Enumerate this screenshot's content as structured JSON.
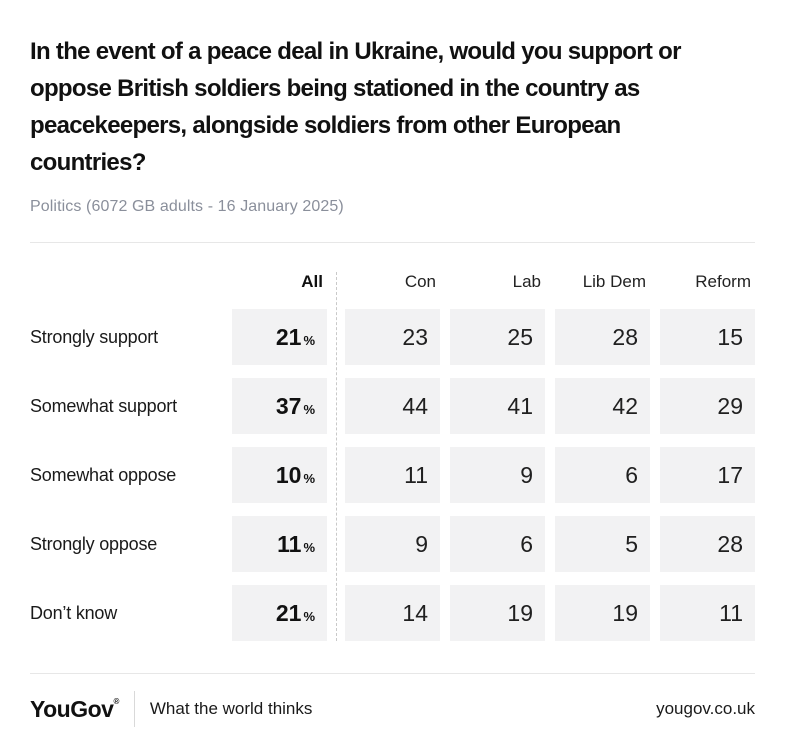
{
  "header": {
    "title_lines": [
      "In the event of a peace deal in Ukraine, would you support or",
      "oppose British soldiers being stationed in the country as",
      "peacekeepers, alongside soldiers from other European",
      "countries?"
    ],
    "title_full": "In the event of a peace deal in Ukraine, would you support or oppose British soldiers being stationed in the country as peacekeepers, alongside soldiers from other European countries?",
    "subtitle": "Politics (6072 GB adults - 16 January 2025)"
  },
  "table": {
    "columns": [
      "All",
      "Con",
      "Lab",
      "Lib Dem",
      "Reform"
    ],
    "percent_sign": "%",
    "rows": [
      {
        "label": "Strongly support",
        "all": "21",
        "values": [
          "23",
          "25",
          "28",
          "15"
        ]
      },
      {
        "label": "Somewhat support",
        "all": "37",
        "values": [
          "44",
          "41",
          "42",
          "29"
        ]
      },
      {
        "label": "Somewhat oppose",
        "all": "10",
        "values": [
          "11",
          "9",
          "6",
          "17"
        ]
      },
      {
        "label": "Strongly oppose",
        "all": "11",
        "values": [
          "9",
          "6",
          "5",
          "28"
        ]
      },
      {
        "label": "Don’t know",
        "all": "21",
        "values": [
          "14",
          "19",
          "19",
          "11"
        ]
      }
    ]
  },
  "chart_data": {
    "type": "table",
    "title": "In the event of a peace deal in Ukraine, would you support or oppose British soldiers being stationed in the country as peacekeepers, alongside soldiers from other European countries?",
    "subtitle": "Politics (6072 GB adults - 16 January 2025)",
    "units": "percent",
    "columns": [
      "All",
      "Con",
      "Lab",
      "Lib Dem",
      "Reform"
    ],
    "row_labels": [
      "Strongly support",
      "Somewhat support",
      "Somewhat oppose",
      "Strongly oppose",
      "Don’t know"
    ],
    "values": [
      [
        21,
        23,
        25,
        28,
        15
      ],
      [
        37,
        44,
        41,
        42,
        29
      ],
      [
        10,
        11,
        9,
        6,
        17
      ],
      [
        11,
        9,
        6,
        5,
        28
      ],
      [
        21,
        14,
        19,
        19,
        11
      ]
    ]
  },
  "footer": {
    "logo": "YouGov",
    "registered_mark": "®",
    "tagline": "What the world thinks",
    "website": "yougov.co.uk"
  },
  "colors": {
    "background": "#ffffff",
    "title_text": "#111111",
    "subtitle_text": "#8a8f9b",
    "cell_background": "#f2f2f3",
    "divider": "#e7e7e7",
    "dashed_divider": "#c9c9c9"
  }
}
